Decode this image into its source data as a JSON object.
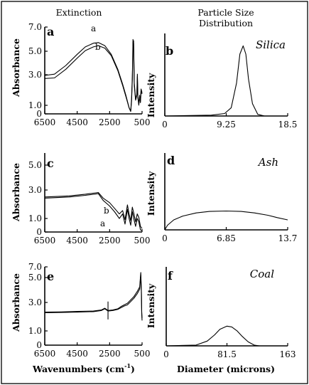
{
  "headers": {
    "extinction": "Extinction",
    "psd_line1": "Particle Size",
    "psd_line2": "Distribution"
  },
  "labels": {
    "absorbance": "Absorbance",
    "intensity": "Intensity",
    "wavenumbers_prefix": "Wavenumbers (cm",
    "wavenumbers_exp": "-1",
    "wavenumbers_suffix": ")",
    "diameter": "Diameter (microns)"
  },
  "chart_data": [
    {
      "id": "a",
      "panel_label": "a",
      "type": "line",
      "x_reversed": true,
      "xlim": [
        6500,
        500
      ],
      "ylim": [
        0,
        7
      ],
      "x_ticks": [
        "6500",
        "4500",
        "2500",
        "500"
      ],
      "y_ticks": [
        "7.0",
        "5.0",
        "3.0",
        "1.0",
        "0"
      ],
      "series": [
        {
          "name": "a",
          "points": [
            [
              6500,
              3.1
            ],
            [
              5900,
              3.2
            ],
            [
              5200,
              3.9
            ],
            [
              4500,
              4.8
            ],
            [
              4000,
              5.4
            ],
            [
              3500,
              5.7
            ],
            [
              3200,
              5.75
            ],
            [
              2800,
              5.5
            ],
            [
              2400,
              4.8
            ],
            [
              2000,
              3.6
            ],
            [
              1700,
              2.4
            ],
            [
              1500,
              1.5
            ],
            [
              1300,
              0.5
            ],
            [
              1200,
              0.2
            ],
            [
              1150,
              1.2
            ],
            [
              1100,
              3.0
            ],
            [
              1080,
              4.5
            ],
            [
              1060,
              6.0
            ],
            [
              1040,
              5.4
            ],
            [
              1020,
              5.9
            ],
            [
              1000,
              4.0
            ],
            [
              980,
              2.5
            ],
            [
              900,
              1.2
            ],
            [
              820,
              1.6
            ],
            [
              790,
              3.2
            ],
            [
              760,
              1.4
            ],
            [
              700,
              0.8
            ],
            [
              650,
              1.5
            ],
            [
              600,
              1.0
            ],
            [
              560,
              2.0
            ],
            [
              500,
              1.7
            ]
          ]
        },
        {
          "name": "b",
          "points": [
            [
              6500,
              2.85
            ],
            [
              5900,
              2.9
            ],
            [
              5200,
              3.6
            ],
            [
              4500,
              4.5
            ],
            [
              4000,
              5.1
            ],
            [
              3500,
              5.4
            ],
            [
              3200,
              5.5
            ],
            [
              2800,
              5.3
            ],
            [
              2400,
              4.7
            ],
            [
              2000,
              3.5
            ],
            [
              1700,
              2.3
            ],
            [
              1500,
              1.4
            ],
            [
              1300,
              0.5
            ],
            [
              1200,
              0.2
            ],
            [
              1150,
              1.0
            ],
            [
              1100,
              2.8
            ],
            [
              1080,
              4.3
            ],
            [
              1060,
              5.8
            ],
            [
              1040,
              5.2
            ],
            [
              1020,
              5.7
            ],
            [
              1000,
              3.8
            ],
            [
              980,
              2.3
            ],
            [
              900,
              1.1
            ],
            [
              820,
              1.5
            ],
            [
              790,
              3.0
            ],
            [
              760,
              1.3
            ],
            [
              700,
              0.7
            ],
            [
              650,
              1.4
            ],
            [
              600,
              0.9
            ],
            [
              560,
              1.9
            ],
            [
              500,
              1.6
            ]
          ]
        }
      ],
      "annotations": [
        "a",
        "b"
      ]
    },
    {
      "id": "b",
      "panel_label": "b",
      "material": "Silica",
      "type": "line",
      "xlim": [
        0,
        18.5
      ],
      "x_ticks": [
        "0",
        "9.25",
        "18.5"
      ],
      "series": [
        {
          "name": "",
          "points": [
            [
              0,
              0
            ],
            [
              7,
              0.01
            ],
            [
              9,
              0.03
            ],
            [
              10,
              0.1
            ],
            [
              10.8,
              0.4
            ],
            [
              11.3,
              0.75
            ],
            [
              11.8,
              0.85
            ],
            [
              12.2,
              0.75
            ],
            [
              12.6,
              0.45
            ],
            [
              13.2,
              0.15
            ],
            [
              14,
              0.02
            ],
            [
              15,
              0
            ]
          ]
        }
      ]
    },
    {
      "id": "c",
      "panel_label": "c",
      "type": "line",
      "x_reversed": true,
      "xlim": [
        6500,
        500
      ],
      "ylim": [
        0,
        7
      ],
      "x_ticks": [
        "6500",
        "4500",
        "2500",
        "500"
      ],
      "y_ticks": [
        "5.0",
        "3.0",
        "1.0",
        "0"
      ],
      "series": [
        {
          "name": "a",
          "points": [
            [
              6500,
              3.1
            ],
            [
              5000,
              3.2
            ],
            [
              4000,
              3.35
            ],
            [
              3200,
              3.5
            ],
            [
              2900,
              3.0
            ],
            [
              2500,
              2.6
            ],
            [
              2200,
              2.1
            ],
            [
              1900,
              1.6
            ],
            [
              1700,
              1.9
            ],
            [
              1550,
              1.1
            ],
            [
              1400,
              2.4
            ],
            [
              1300,
              1.6
            ],
            [
              1200,
              1.0
            ],
            [
              1100,
              2.2
            ],
            [
              1000,
              1.6
            ],
            [
              900,
              0.9
            ],
            [
              800,
              1.6
            ],
            [
              700,
              1.3
            ],
            [
              600,
              0.5
            ],
            [
              500,
              0.3
            ]
          ]
        },
        {
          "name": "b",
          "points": [
            [
              6500,
              3.0
            ],
            [
              5000,
              3.1
            ],
            [
              4000,
              3.25
            ],
            [
              3200,
              3.4
            ],
            [
              2900,
              2.8
            ],
            [
              2500,
              2.3
            ],
            [
              2200,
              1.8
            ],
            [
              1900,
              1.2
            ],
            [
              1700,
              1.6
            ],
            [
              1550,
              0.7
            ],
            [
              1400,
              2.0
            ],
            [
              1300,
              1.2
            ],
            [
              1200,
              0.6
            ],
            [
              1100,
              1.8
            ],
            [
              1000,
              1.1
            ],
            [
              900,
              0.5
            ],
            [
              800,
              1.2
            ],
            [
              700,
              0.9
            ],
            [
              600,
              0.2
            ],
            [
              500,
              0.1
            ]
          ]
        }
      ],
      "annotations": [
        "b",
        "a"
      ]
    },
    {
      "id": "d",
      "panel_label": "d",
      "material": "Ash",
      "type": "line",
      "xlim": [
        0,
        13.7
      ],
      "x_ticks": [
        "0",
        "6.85",
        "13.7"
      ],
      "series": [
        {
          "name": "",
          "points": [
            [
              0,
              0.0
            ],
            [
              0.3,
              0.06
            ],
            [
              1,
              0.13
            ],
            [
              2,
              0.18
            ],
            [
              3.5,
              0.22
            ],
            [
              5,
              0.24
            ],
            [
              6.85,
              0.245
            ],
            [
              8.5,
              0.24
            ],
            [
              10,
              0.22
            ],
            [
              11.5,
              0.19
            ],
            [
              12.5,
              0.16
            ],
            [
              13.7,
              0.13
            ]
          ]
        }
      ]
    },
    {
      "id": "e",
      "panel_label": "e",
      "type": "line",
      "x_reversed": true,
      "xlim": [
        6500,
        500
      ],
      "ylim": [
        0,
        7
      ],
      "x_ticks": [
        "6500",
        "4500",
        "2500",
        "500"
      ],
      "y_ticks": [
        "7.0",
        "5.0",
        "3.0",
        "1.0",
        "0"
      ],
      "series": [
        {
          "name": "",
          "points": [
            [
              6500,
              2.9
            ],
            [
              5500,
              2.92
            ],
            [
              4500,
              2.95
            ],
            [
              3500,
              3.0
            ],
            [
              3000,
              3.1
            ],
            [
              2800,
              3.25
            ],
            [
              2600,
              3.05
            ],
            [
              2300,
              3.1
            ],
            [
              2000,
              3.2
            ],
            [
              1800,
              3.35
            ],
            [
              1600,
              3.5
            ],
            [
              1400,
              3.6
            ],
            [
              1200,
              3.9
            ],
            [
              1000,
              4.2
            ],
            [
              800,
              4.6
            ],
            [
              650,
              5.0
            ],
            [
              580,
              6.3
            ],
            [
              540,
              4.5
            ],
            [
              520,
              2.8
            ],
            [
              500,
              2.2
            ]
          ]
        },
        {
          "name": "",
          "points": [
            [
              6500,
              2.95
            ],
            [
              5500,
              2.97
            ],
            [
              4500,
              3.02
            ],
            [
              3500,
              3.05
            ],
            [
              3000,
              3.15
            ],
            [
              2800,
              3.3
            ],
            [
              2600,
              3.1
            ],
            [
              2300,
              3.15
            ],
            [
              2000,
              3.25
            ],
            [
              1800,
              3.45
            ],
            [
              1600,
              3.6
            ],
            [
              1400,
              3.75
            ],
            [
              1200,
              4.05
            ],
            [
              1000,
              4.35
            ],
            [
              800,
              4.8
            ],
            [
              650,
              5.2
            ],
            [
              580,
              6.5
            ],
            [
              540,
              4.7
            ],
            [
              520,
              3.0
            ],
            [
              500,
              2.4
            ]
          ]
        }
      ]
    },
    {
      "id": "f",
      "panel_label": "f",
      "material": "Coal",
      "type": "line",
      "xlim": [
        0,
        163
      ],
      "x_ticks": [
        "0",
        "81.5",
        "163"
      ],
      "series": [
        {
          "name": "",
          "points": [
            [
              0,
              0
            ],
            [
              40,
              0.01
            ],
            [
              55,
              0.06
            ],
            [
              65,
              0.14
            ],
            [
              72,
              0.21
            ],
            [
              81.5,
              0.25
            ],
            [
              88,
              0.24
            ],
            [
              95,
              0.19
            ],
            [
              102,
              0.12
            ],
            [
              110,
              0.05
            ],
            [
              118,
              0.01
            ],
            [
              125,
              0
            ]
          ]
        }
      ]
    }
  ]
}
